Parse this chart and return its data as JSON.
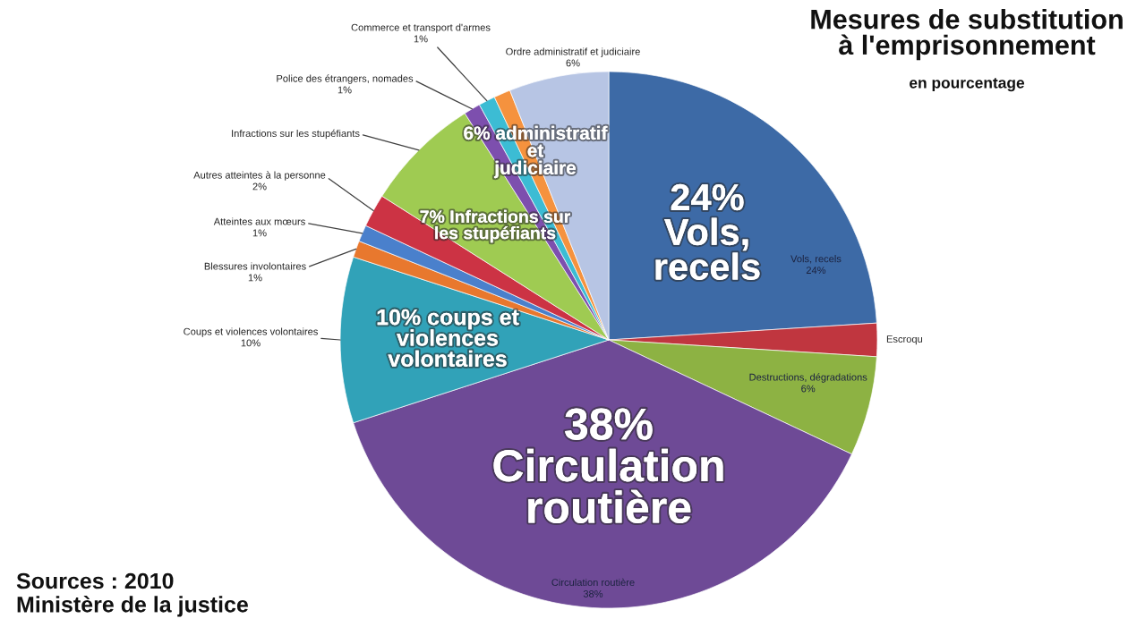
{
  "chart_data": {
    "type": "pie",
    "title": "Mesures de substitution\nà l'emprisonnement",
    "subtitle": "en pourcentage",
    "categories": [
      "Vols, recels",
      "Escroqu",
      "Destructions, dégradations",
      "Circulation routière",
      "Coups et violences volontaires",
      "Blessures involontaires",
      "Atteintes aux mœurs",
      "Autres atteintes à la personne",
      "Infractions sur les stupéfiants",
      "Police des étrangers, nomades",
      "Commerce et transport d'armes",
      null,
      "Ordre administratif et judiciaire"
    ],
    "values": [
      24,
      2,
      6,
      38,
      10,
      1,
      1,
      2,
      7,
      1,
      1,
      1,
      6
    ],
    "colors": [
      "#3d6aa6",
      "#c0363f",
      "#8db243",
      "#6e4a96",
      "#31a2b8",
      "#e8782e",
      "#4a80cc",
      "#cc3344",
      "#9fcb52",
      "#7d4fae",
      "#3cbcd4",
      "#f5923e",
      "#b7c5e4"
    ],
    "value_labels": [
      "24%",
      null,
      "6%",
      "38%",
      "10%",
      "1%",
      "1%",
      "2%",
      null,
      "1%",
      "1%",
      null,
      "6%"
    ],
    "annotations": [
      "24%\nVols,\nrecels",
      "38%\nCirculation\nroutière",
      "10% coups et\nviolences\nvolontaires",
      "7% Infractions sur\nles stupéfiants",
      "6% administratif\net\njudiciaire",
      "Sources : 2010\nMinistère de la justice"
    ]
  }
}
